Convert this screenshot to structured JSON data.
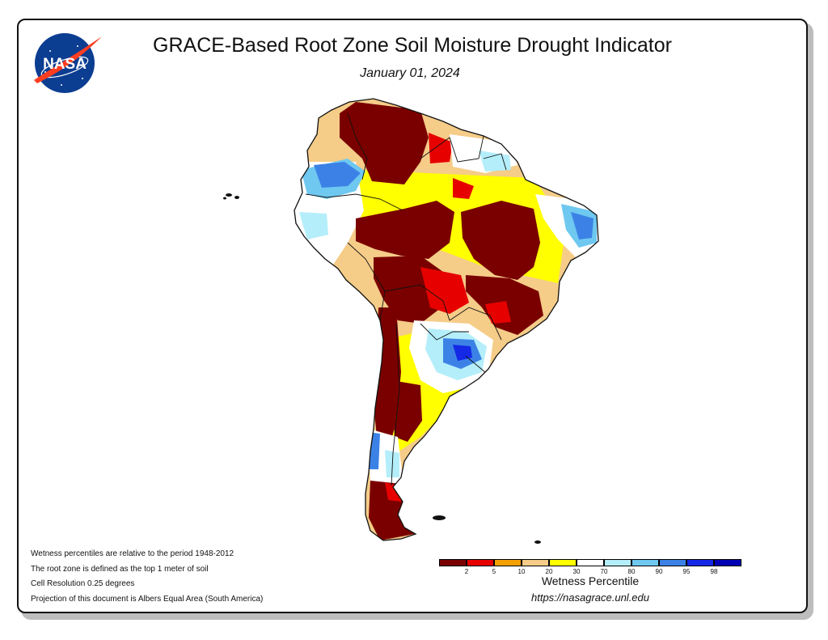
{
  "header": {
    "title": "GRACE-Based Root Zone Soil Moisture Drought Indicator",
    "date": "January 01, 2024"
  },
  "logo": {
    "text": "NASA",
    "colors": {
      "blue": "#0b3d91",
      "red": "#fc3d21",
      "white": "#ffffff"
    }
  },
  "notes": [
    "Wetness percentiles are relative to the period 1948-2012",
    "The root zone is defined as the top 1 meter of soil",
    "Cell Resolution 0.25 degrees",
    "Projection of this document is Albers Equal Area (South America)"
  ],
  "legend": {
    "title": "Wetness Percentile",
    "colors": [
      "#7a0000",
      "#e60000",
      "#f5a000",
      "#f5cc88",
      "#ffff00",
      "#ffffff",
      "#b4eefa",
      "#6ec8f0",
      "#3c82e6",
      "#1428e6",
      "#0000b4"
    ],
    "tick_labels": [
      "2",
      "5",
      "10",
      "20",
      "30",
      "70",
      "80",
      "90",
      "95",
      "98"
    ]
  },
  "footer": {
    "url": "https://nasagrace.unl.edu"
  }
}
